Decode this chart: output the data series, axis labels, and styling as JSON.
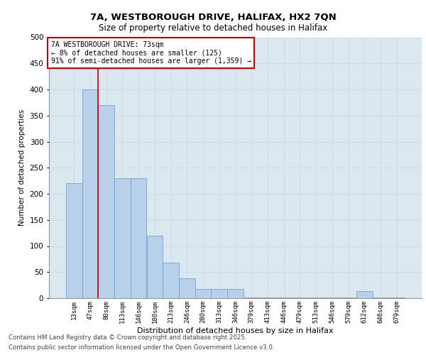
{
  "title_line1": "7A, WESTBOROUGH DRIVE, HALIFAX, HX2 7QN",
  "title_line2": "Size of property relative to detached houses in Halifax",
  "xlabel": "Distribution of detached houses by size in Halifax",
  "ylabel": "Number of detached properties",
  "categories": [
    "13sqm",
    "47sqm",
    "80sqm",
    "113sqm",
    "146sqm",
    "180sqm",
    "213sqm",
    "246sqm",
    "280sqm",
    "313sqm",
    "346sqm",
    "379sqm",
    "413sqm",
    "446sqm",
    "479sqm",
    "513sqm",
    "546sqm",
    "579sqm",
    "612sqm",
    "646sqm",
    "679sqm"
  ],
  "values": [
    220,
    400,
    370,
    230,
    230,
    120,
    68,
    38,
    18,
    18,
    18,
    2,
    2,
    2,
    2,
    2,
    2,
    2,
    14,
    2,
    2
  ],
  "bar_color": "#b8d0ea",
  "bar_edge_color": "#6699cc",
  "grid_color": "#c8d8e8",
  "bg_color": "#dce8f0",
  "redline_index": 2,
  "annotation_text": "7A WESTBOROUGH DRIVE: 73sqm\n← 8% of detached houses are smaller (125)\n91% of semi-detached houses are larger (1,359) →",
  "annotation_box_color": "#ffffff",
  "annotation_box_edge": "#cc0000",
  "footer_line1": "Contains HM Land Registry data © Crown copyright and database right 2025.",
  "footer_line2": "Contains public sector information licensed under the Open Government Licence v3.0.",
  "ylim": [
    0,
    500
  ],
  "yticks": [
    0,
    50,
    100,
    150,
    200,
    250,
    300,
    350,
    400,
    450,
    500
  ]
}
